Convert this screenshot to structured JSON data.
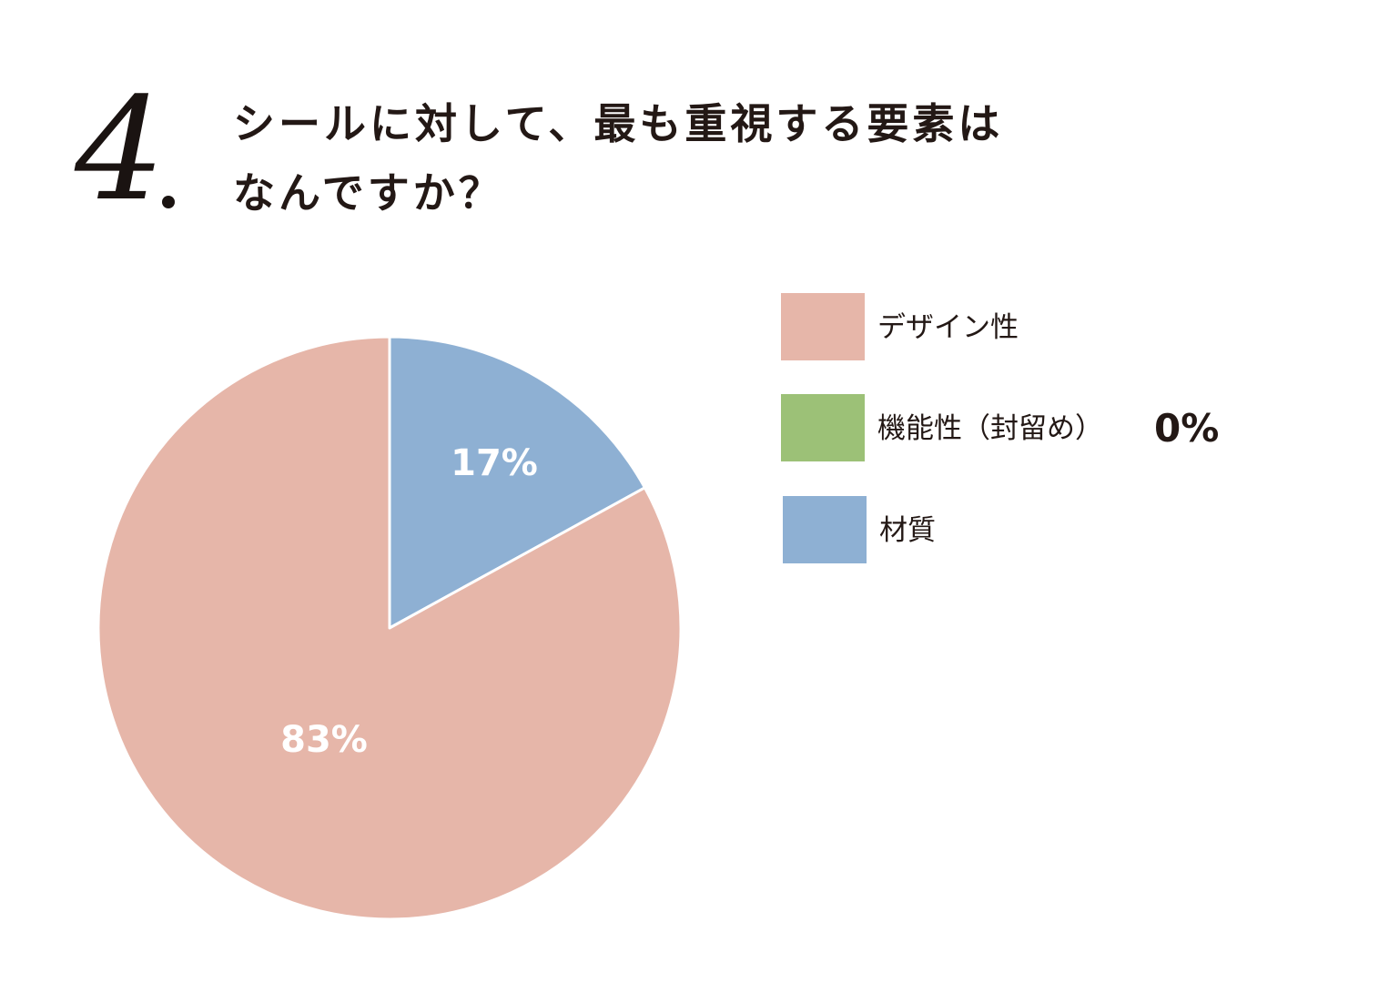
{
  "question": {
    "number": "4",
    "line1": "シールに対して、最も重視する要素は",
    "line2": "なんですか？"
  },
  "chart_data": {
    "type": "pie",
    "categories": [
      "デザイン性",
      "機能性（封留め）",
      "材質"
    ],
    "values": [
      83,
      0,
      17
    ],
    "colors": [
      "#e6b6a9",
      "#9cc177",
      "#8eb0d3"
    ],
    "slice_labels": [
      "83%",
      "0%",
      "17%"
    ],
    "legend_position": "right"
  },
  "legend": {
    "items": [
      {
        "label": "デザイン性",
        "color": "#e6b6a9"
      },
      {
        "label": "機能性（封留め）",
        "color": "#9cc177",
        "value": "0%"
      },
      {
        "label": "材質",
        "color": "#8eb0d3"
      }
    ]
  }
}
